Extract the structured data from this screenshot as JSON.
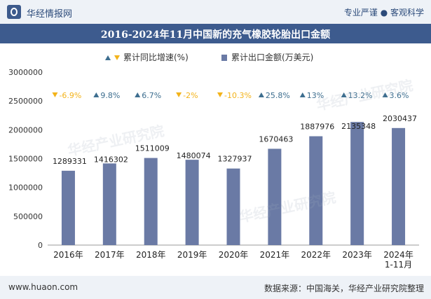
{
  "header": {
    "brand": "华经情报网",
    "tagline": "专业严谨 ● 客观科学"
  },
  "footer": {
    "site": "www.huaon.com",
    "source": "数据来源：中国海关，华经产业研究院整理"
  },
  "watermark": "华经产业研究院",
  "chart_data": {
    "type": "bar",
    "title": "2016-2024年11月中国新的充气橡胶轮胎出口金额",
    "categories": [
      "2016年",
      "2017年",
      "2018年",
      "2019年",
      "2020年",
      "2021年",
      "2022年",
      "2023年",
      "2024年\n1-11月"
    ],
    "series": [
      {
        "name": "累计出口金额(万美元)",
        "type": "bar",
        "color": "#6a7aa5",
        "values": [
          1289331,
          1416302,
          1511009,
          1480074,
          1327937,
          1670463,
          1887976,
          2135348,
          2030437
        ],
        "labels": [
          "1289331",
          "1416302",
          "1511009",
          "1480074",
          "1327937",
          "1670463",
          "1887976",
          "2135348",
          "2030437"
        ]
      },
      {
        "name": "累计同比增速(%)",
        "type": "marker",
        "values": [
          -6.9,
          9.8,
          6.7,
          -2,
          -10.3,
          25.8,
          13,
          13.2,
          3.6
        ],
        "labels": [
          "-6.9%",
          "9.8%",
          "6.7%",
          "-2%",
          "-10.3%",
          "25.8%",
          "13%",
          "13.2%",
          "3.6%"
        ]
      }
    ],
    "yTicks": [
      "0",
      "500000",
      "1000000",
      "1500000",
      "2000000",
      "2500000",
      "3000000"
    ],
    "ylim": [
      0,
      3000000
    ],
    "colors": {
      "up": "#3d6e8f",
      "down": "#f3b31a",
      "bar": "#6a7aa5"
    },
    "legend": "top-center",
    "grid": false
  }
}
